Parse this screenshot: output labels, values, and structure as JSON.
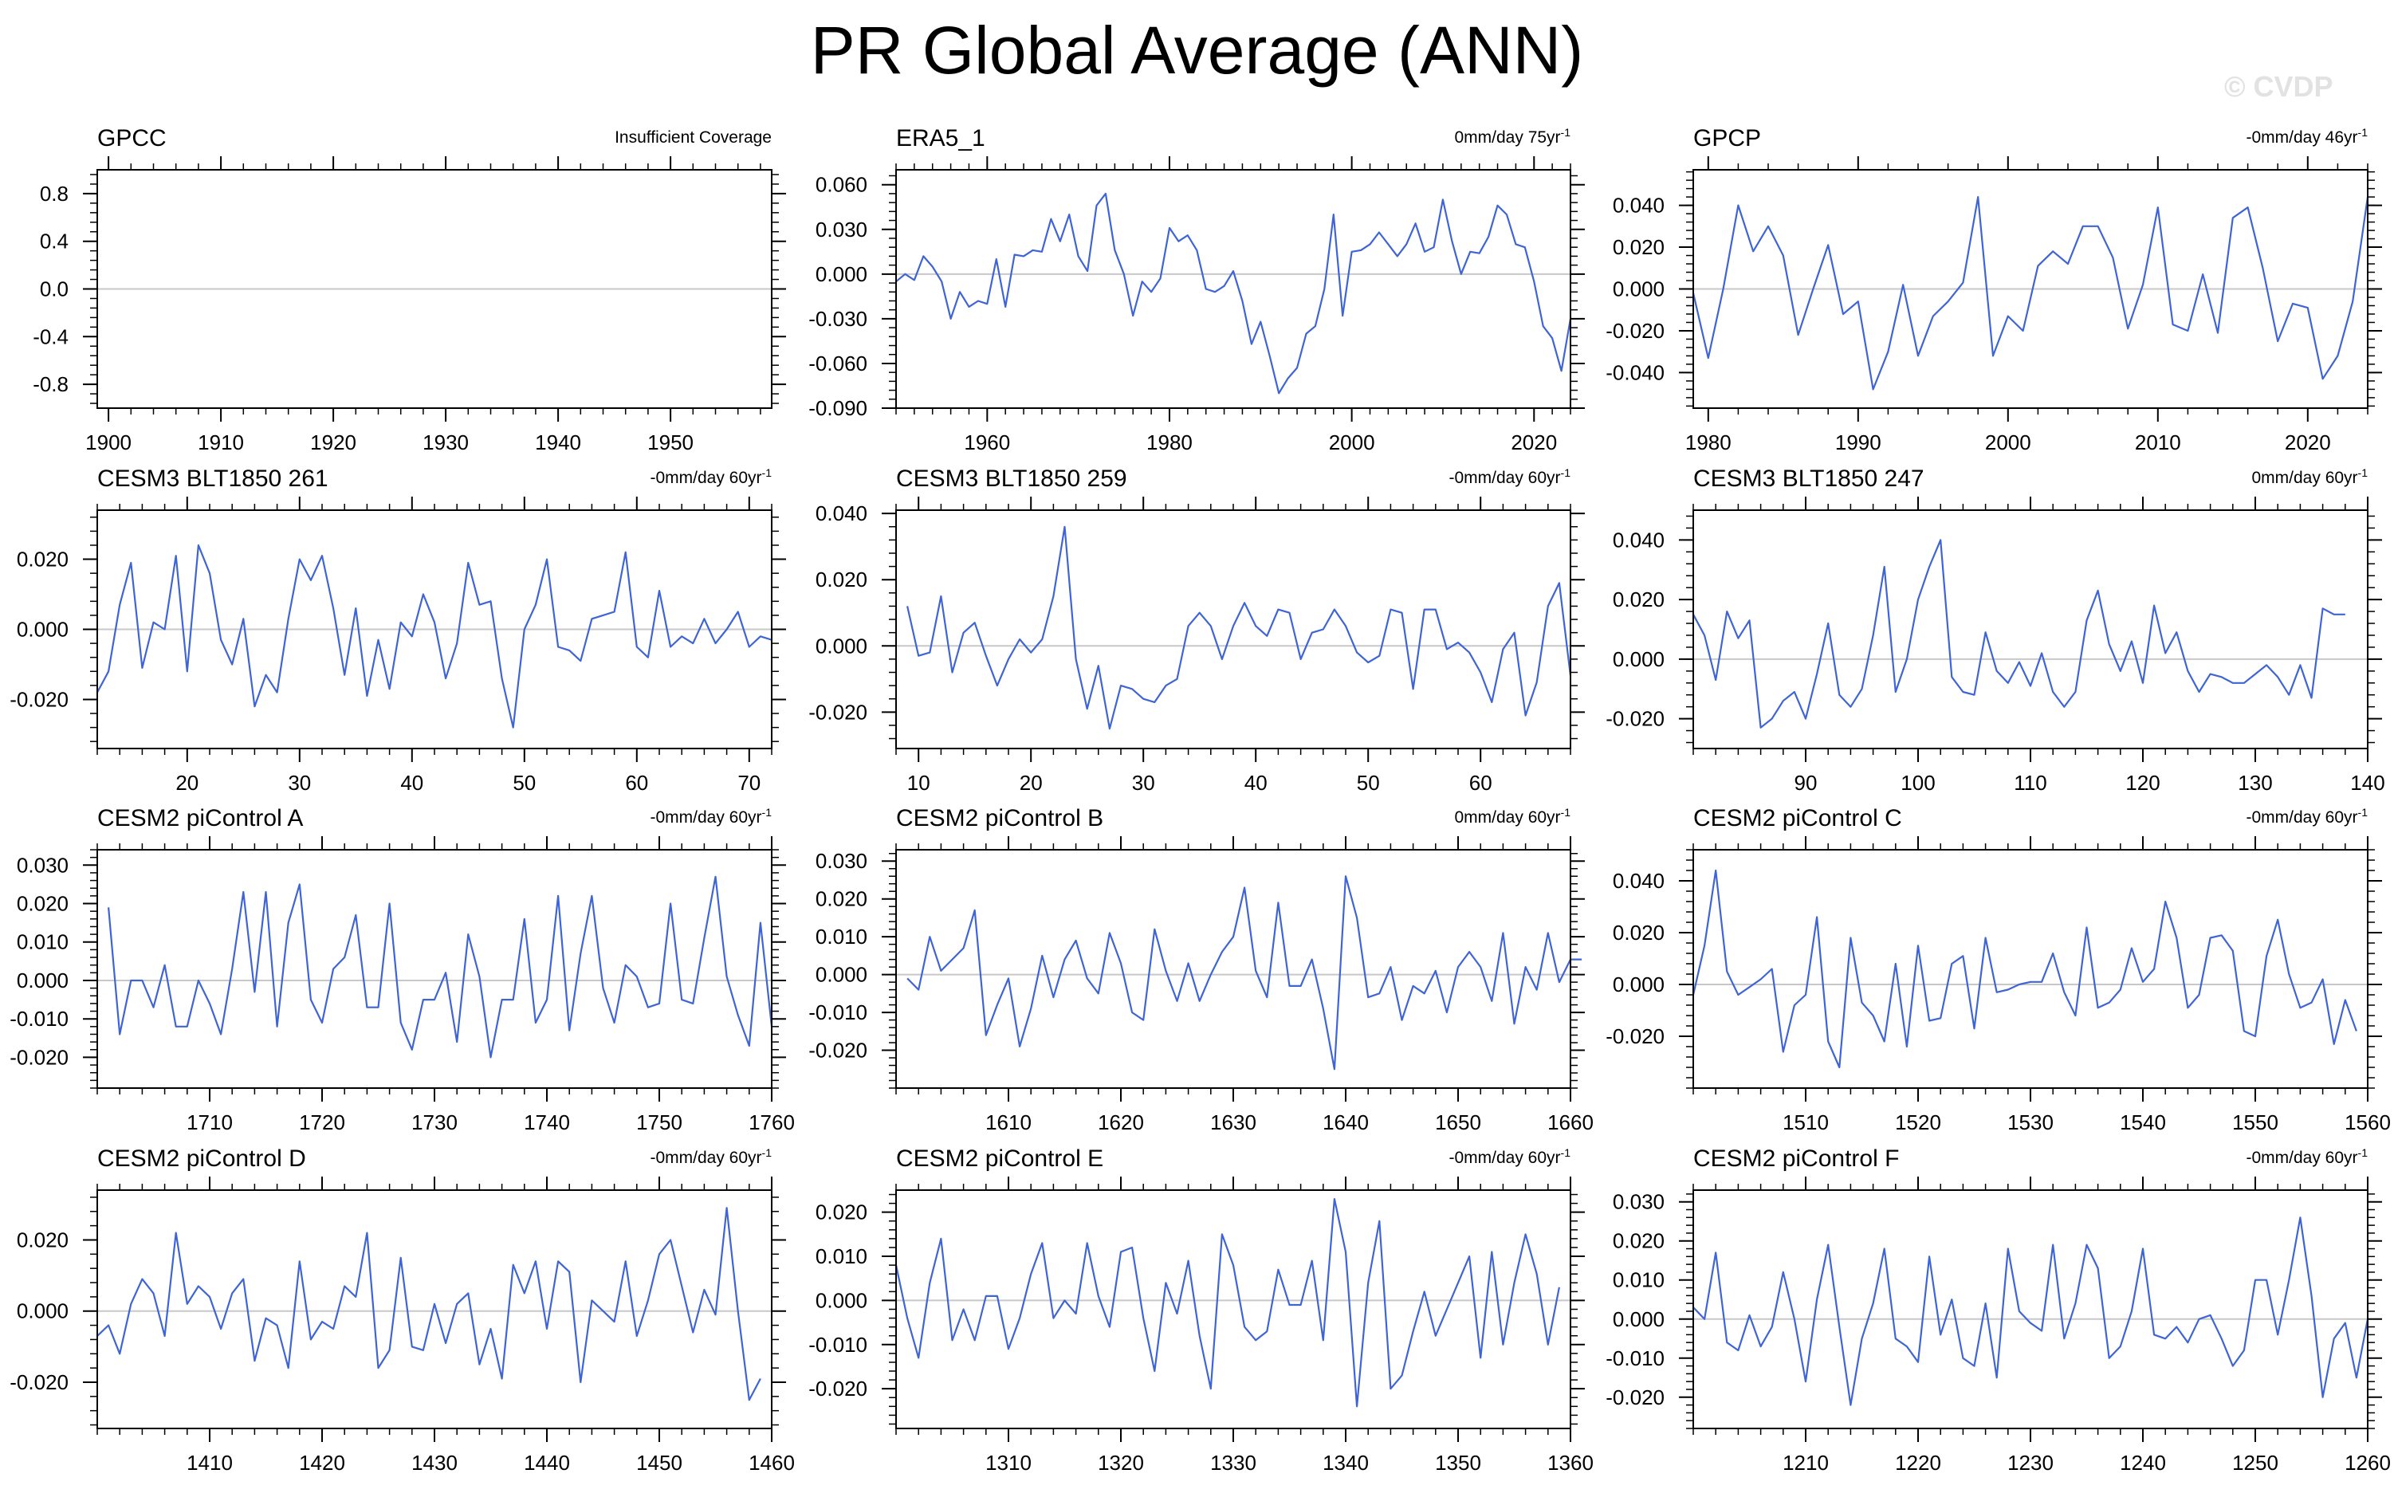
{
  "title": "PR Global Average (ANN)",
  "watermark": "© CVDP",
  "line_color": "#3f64d4",
  "zero_line_color": "#c8c8c8",
  "chart_data": [
    {
      "type": "line",
      "title": "GPCC",
      "subtitle": "Insufficient Coverage",
      "xlim": [
        1899,
        1959
      ],
      "ylim": [
        -1.0,
        1.0
      ],
      "xticks": [
        1900,
        1910,
        1920,
        1930,
        1940,
        1950
      ],
      "xticklabels": [
        "1900",
        "1910",
        "1920",
        "1930",
        "1940",
        "1950"
      ],
      "yticks": [
        0.8,
        0.4,
        0.0,
        -0.4,
        -0.8
      ],
      "yticklabels": [
        "0.8",
        "0.4",
        "0.0",
        "-0.4",
        "-0.8"
      ],
      "x": [],
      "y": []
    },
    {
      "type": "line",
      "title": "ERA5_1",
      "subtitle": "0mm/day 75yr",
      "subtitle_sup": "-1",
      "xlim": [
        1950,
        2024
      ],
      "ylim": [
        -0.09,
        0.07
      ],
      "xticks": [
        1960,
        1980,
        2000,
        2020
      ],
      "xticklabels": [
        "1960",
        "1980",
        "2000",
        "2020"
      ],
      "yticks": [
        0.06,
        0.03,
        0.0,
        -0.03,
        -0.06,
        -0.09
      ],
      "yticklabels": [
        "0.060",
        "0.030",
        "0.000",
        "-0.030",
        "-0.060",
        "-0.090"
      ],
      "x_start": 1950,
      "y": [
        -0.005,
        0.0,
        -0.004,
        0.012,
        0.005,
        -0.005,
        -0.03,
        -0.012,
        -0.022,
        -0.018,
        -0.02,
        0.01,
        -0.022,
        0.013,
        0.012,
        0.016,
        0.015,
        0.037,
        0.022,
        0.04,
        0.012,
        0.002,
        0.046,
        0.054,
        0.016,
        0.0,
        -0.028,
        -0.005,
        -0.012,
        -0.003,
        0.031,
        0.022,
        0.026,
        0.016,
        -0.01,
        -0.012,
        -0.008,
        0.002,
        -0.018,
        -0.047,
        -0.032,
        -0.055,
        -0.08,
        -0.07,
        -0.063,
        -0.04,
        -0.035,
        -0.01,
        0.04,
        -0.028,
        0.015,
        0.016,
        0.02,
        0.028,
        0.02,
        0.012,
        0.02,
        0.034,
        0.015,
        0.018,
        0.05,
        0.022,
        0.0,
        0.015,
        0.014,
        0.025,
        0.046,
        0.04,
        0.02,
        0.018,
        -0.005,
        -0.035,
        -0.043,
        -0.065,
        -0.03
      ]
    },
    {
      "type": "line",
      "title": "GPCP",
      "subtitle": "-0mm/day 46yr",
      "subtitle_sup": "-1",
      "xlim": [
        1979,
        2024
      ],
      "ylim": [
        -0.057,
        0.057
      ],
      "xticks": [
        1980,
        1990,
        2000,
        2010,
        2020
      ],
      "xticklabels": [
        "1980",
        "1990",
        "2000",
        "2010",
        "2020"
      ],
      "yticks": [
        0.04,
        0.02,
        0.0,
        -0.02,
        -0.04
      ],
      "yticklabels": [
        "0.040",
        "0.020",
        "0.000",
        "-0.020",
        "-0.040"
      ],
      "x_start": 1979,
      "y": [
        -0.002,
        -0.033,
        0.0,
        0.04,
        0.018,
        0.03,
        0.016,
        -0.022,
        0.0,
        0.021,
        -0.012,
        -0.006,
        -0.048,
        -0.03,
        0.002,
        -0.032,
        -0.013,
        -0.006,
        0.003,
        0.044,
        -0.032,
        -0.013,
        -0.02,
        0.011,
        0.018,
        0.012,
        0.03,
        0.03,
        0.015,
        -0.019,
        0.002,
        0.039,
        -0.017,
        -0.02,
        0.007,
        -0.021,
        0.034,
        0.039,
        0.01,
        -0.025,
        -0.007,
        -0.009,
        -0.043,
        -0.032,
        -0.006,
        0.044
      ]
    },
    {
      "type": "line",
      "title": "CESM3 BLT1850 261",
      "subtitle": "-0mm/day 60yr",
      "subtitle_sup": "-1",
      "xlim": [
        12,
        72
      ],
      "ylim": [
        -0.034,
        0.034
      ],
      "xticks": [
        20,
        30,
        40,
        50,
        60,
        70
      ],
      "xticklabels": [
        "20",
        "30",
        "40",
        "50",
        "60",
        "70"
      ],
      "yticks": [
        0.02,
        0.0,
        -0.02
      ],
      "yticklabels": [
        "0.020",
        "0.000",
        "-0.020"
      ],
      "x_start": 12,
      "y": [
        -0.018,
        -0.012,
        0.007,
        0.019,
        -0.011,
        0.002,
        0.0,
        0.021,
        -0.012,
        0.024,
        0.016,
        -0.003,
        -0.01,
        0.003,
        -0.022,
        -0.013,
        -0.018,
        0.003,
        0.02,
        0.014,
        0.021,
        0.006,
        -0.013,
        0.006,
        -0.019,
        -0.003,
        -0.017,
        0.002,
        -0.002,
        0.01,
        0.002,
        -0.014,
        -0.004,
        0.019,
        0.007,
        0.008,
        -0.014,
        -0.028,
        0.0,
        0.007,
        0.02,
        -0.005,
        -0.006,
        -0.009,
        0.003,
        0.004,
        0.005,
        0.022,
        -0.005,
        -0.008,
        0.011,
        -0.005,
        -0.002,
        -0.004,
        0.003,
        -0.004,
        0.0,
        0.005,
        -0.005,
        -0.002,
        -0.003
      ]
    },
    {
      "type": "line",
      "title": "CESM3 BLT1850 259",
      "subtitle": "-0mm/day 60yr",
      "subtitle_sup": "-1",
      "xlim": [
        8,
        68
      ],
      "ylim": [
        -0.031,
        0.041
      ],
      "xticks": [
        10,
        20,
        30,
        40,
        50,
        60
      ],
      "xticklabels": [
        "10",
        "20",
        "30",
        "40",
        "50",
        "60"
      ],
      "yticks": [
        0.04,
        0.02,
        0.0,
        -0.02
      ],
      "yticklabels": [
        "0.040",
        "0.020",
        "0.000",
        "-0.020"
      ],
      "x_start": 9,
      "y": [
        0.012,
        -0.003,
        -0.002,
        0.015,
        -0.008,
        0.004,
        0.007,
        -0.003,
        -0.012,
        -0.004,
        0.002,
        -0.002,
        0.002,
        0.015,
        0.036,
        -0.004,
        -0.019,
        -0.006,
        -0.025,
        -0.012,
        -0.013,
        -0.016,
        -0.017,
        -0.012,
        -0.01,
        0.006,
        0.01,
        0.006,
        -0.004,
        0.006,
        0.013,
        0.006,
        0.003,
        0.011,
        0.01,
        -0.004,
        0.004,
        0.005,
        0.011,
        0.006,
        -0.002,
        -0.005,
        -0.003,
        0.011,
        0.01,
        -0.013,
        0.011,
        0.011,
        -0.001,
        0.001,
        -0.002,
        -0.008,
        -0.017,
        -0.001,
        0.004,
        -0.021,
        -0.011,
        0.012,
        0.019,
        -0.009
      ]
    },
    {
      "type": "line",
      "title": "CESM3 BLT1850 247",
      "subtitle": "0mm/day 60yr",
      "subtitle_sup": "-1",
      "xlim": [
        80,
        140
      ],
      "ylim": [
        -0.03,
        0.05
      ],
      "xticks": [
        90,
        100,
        110,
        120,
        130,
        140
      ],
      "xticklabels": [
        "90",
        "100",
        "110",
        "120",
        "130",
        "140"
      ],
      "yticks": [
        0.04,
        0.02,
        0.0,
        -0.02
      ],
      "yticklabels": [
        "0.040",
        "0.020",
        "0.000",
        "-0.020"
      ],
      "x_start": 80,
      "y": [
        0.015,
        0.008,
        -0.007,
        0.016,
        0.007,
        0.013,
        -0.023,
        -0.02,
        -0.014,
        -0.011,
        -0.02,
        -0.005,
        0.012,
        -0.012,
        -0.016,
        -0.01,
        0.008,
        0.031,
        -0.011,
        0.0,
        0.02,
        0.031,
        0.04,
        -0.006,
        -0.011,
        -0.012,
        0.009,
        -0.004,
        -0.008,
        -0.001,
        -0.009,
        0.002,
        -0.011,
        -0.016,
        -0.011,
        0.013,
        0.023,
        0.005,
        -0.004,
        0.006,
        -0.008,
        0.018,
        0.002,
        0.009,
        -0.004,
        -0.011,
        -0.005,
        -0.006,
        -0.008,
        -0.008,
        -0.005,
        -0.002,
        -0.006,
        -0.012,
        -0.002,
        -0.013,
        0.017,
        0.015,
        0.015
      ]
    },
    {
      "type": "line",
      "title": "CESM2 piControl A",
      "subtitle": "-0mm/day 60yr",
      "subtitle_sup": "-1",
      "xlim": [
        1700,
        1760
      ],
      "ylim": [
        -0.028,
        0.034
      ],
      "xticks": [
        1710,
        1720,
        1730,
        1740,
        1750,
        1760
      ],
      "xticklabels": [
        "1710",
        "1720",
        "1730",
        "1740",
        "1750",
        "1760"
      ],
      "yticks": [
        0.03,
        0.02,
        0.01,
        0.0,
        -0.01,
        -0.02
      ],
      "yticklabels": [
        "0.030",
        "0.020",
        "0.010",
        "0.000",
        "-0.010",
        "-0.020"
      ],
      "x_start": 1701,
      "y": [
        0.019,
        -0.014,
        0.0,
        0.0,
        -0.007,
        0.004,
        -0.012,
        -0.012,
        0.0,
        -0.006,
        -0.014,
        0.003,
        0.023,
        -0.003,
        0.023,
        -0.012,
        0.015,
        0.025,
        -0.005,
        -0.011,
        0.003,
        0.006,
        0.017,
        -0.007,
        -0.007,
        0.02,
        -0.011,
        -0.018,
        -0.005,
        -0.005,
        0.002,
        -0.016,
        0.012,
        0.001,
        -0.02,
        -0.005,
        -0.005,
        0.016,
        -0.011,
        -0.005,
        0.022,
        -0.013,
        0.007,
        0.022,
        -0.002,
        -0.011,
        0.004,
        0.001,
        -0.007,
        -0.006,
        0.02,
        -0.005,
        -0.006,
        0.011,
        0.027,
        0.001,
        -0.009,
        -0.017,
        0.015,
        -0.012
      ]
    },
    {
      "type": "line",
      "title": "CESM2 piControl B",
      "subtitle": "0mm/day 60yr",
      "subtitle_sup": "-1",
      "xlim": [
        1600,
        1660
      ],
      "ylim": [
        -0.03,
        0.033
      ],
      "xticks": [
        1610,
        1620,
        1630,
        1640,
        1650,
        1660
      ],
      "xticklabels": [
        "1610",
        "1620",
        "1630",
        "1640",
        "1650",
        "1660"
      ],
      "yticks": [
        0.03,
        0.02,
        0.01,
        0.0,
        -0.01,
        -0.02
      ],
      "yticklabels": [
        "0.030",
        "0.020",
        "0.010",
        "0.000",
        "-0.010",
        "-0.020"
      ],
      "x_start": 1601,
      "y": [
        -0.001,
        -0.004,
        0.01,
        0.001,
        0.004,
        0.007,
        0.017,
        -0.016,
        -0.008,
        -0.001,
        -0.019,
        -0.009,
        0.005,
        -0.006,
        0.004,
        0.009,
        -0.001,
        -0.005,
        0.011,
        0.003,
        -0.01,
        -0.012,
        0.012,
        0.001,
        -0.007,
        0.003,
        -0.007,
        0.0,
        0.006,
        0.01,
        0.023,
        0.001,
        -0.006,
        0.019,
        -0.003,
        -0.003,
        0.004,
        -0.009,
        -0.025,
        0.026,
        0.015,
        -0.006,
        -0.005,
        0.002,
        -0.012,
        -0.003,
        -0.005,
        0.001,
        -0.01,
        0.002,
        0.006,
        0.002,
        -0.007,
        0.011,
        -0.013,
        0.002,
        -0.004,
        0.011,
        -0.002,
        0.004,
        0.004
      ]
    },
    {
      "type": "line",
      "title": "CESM2 piControl C",
      "subtitle": "-0mm/day 60yr",
      "subtitle_sup": "-1",
      "xlim": [
        1500,
        1560
      ],
      "ylim": [
        -0.04,
        0.052
      ],
      "xticks": [
        1510,
        1520,
        1530,
        1540,
        1550,
        1560
      ],
      "xticklabels": [
        "1510",
        "1520",
        "1530",
        "1540",
        "1550",
        "1560"
      ],
      "yticks": [
        0.04,
        0.02,
        0.0,
        -0.02
      ],
      "yticklabels": [
        "0.040",
        "0.020",
        "0.000",
        "-0.020"
      ],
      "x_start": 1500,
      "y": [
        -0.004,
        0.015,
        0.044,
        0.005,
        -0.004,
        -0.001,
        0.002,
        0.006,
        -0.026,
        -0.008,
        -0.004,
        0.026,
        -0.022,
        -0.032,
        0.018,
        -0.007,
        -0.012,
        -0.022,
        0.008,
        -0.024,
        0.015,
        -0.014,
        -0.013,
        0.008,
        0.011,
        -0.017,
        0.018,
        -0.003,
        -0.002,
        0.0,
        0.001,
        0.001,
        0.012,
        -0.003,
        -0.012,
        0.022,
        -0.009,
        -0.007,
        -0.002,
        0.014,
        0.001,
        0.006,
        0.032,
        0.018,
        -0.009,
        -0.004,
        0.018,
        0.019,
        0.013,
        -0.018,
        -0.02,
        0.011,
        0.025,
        0.004,
        -0.009,
        -0.007,
        0.002,
        -0.023,
        -0.006,
        -0.018
      ]
    },
    {
      "type": "line",
      "title": "CESM2 piControl D",
      "subtitle": "-0mm/day 60yr",
      "subtitle_sup": "-1",
      "xlim": [
        1400,
        1460
      ],
      "ylim": [
        -0.033,
        0.034
      ],
      "xticks": [
        1410,
        1420,
        1430,
        1440,
        1450,
        1460
      ],
      "xticklabels": [
        "1410",
        "1420",
        "1430",
        "1440",
        "1450",
        "1460"
      ],
      "yticks": [
        0.02,
        0.0,
        -0.02
      ],
      "yticklabels": [
        "0.020",
        "0.000",
        "-0.020"
      ],
      "x_start": 1400,
      "y": [
        -0.007,
        -0.004,
        -0.012,
        0.002,
        0.009,
        0.005,
        -0.007,
        0.022,
        0.002,
        0.007,
        0.004,
        -0.005,
        0.005,
        0.009,
        -0.014,
        -0.002,
        -0.004,
        -0.016,
        0.014,
        -0.008,
        -0.003,
        -0.005,
        0.007,
        0.004,
        0.022,
        -0.016,
        -0.011,
        0.015,
        -0.01,
        -0.011,
        0.002,
        -0.009,
        0.002,
        0.005,
        -0.015,
        -0.005,
        -0.019,
        0.013,
        0.005,
        0.014,
        -0.005,
        0.014,
        0.011,
        -0.02,
        0.003,
        0.0,
        -0.003,
        0.014,
        -0.007,
        0.003,
        0.016,
        0.02,
        0.007,
        -0.006,
        0.006,
        -0.001,
        0.029,
        0.0,
        -0.025,
        -0.019
      ]
    },
    {
      "type": "line",
      "title": "CESM2 piControl E",
      "subtitle": "-0mm/day 60yr",
      "subtitle_sup": "-1",
      "xlim": [
        1300,
        1360
      ],
      "ylim": [
        -0.029,
        0.025
      ],
      "xticks": [
        1310,
        1320,
        1330,
        1340,
        1350,
        1360
      ],
      "xticklabels": [
        "1310",
        "1320",
        "1330",
        "1340",
        "1350",
        "1360"
      ],
      "yticks": [
        0.02,
        0.01,
        0.0,
        -0.01,
        -0.02
      ],
      "yticklabels": [
        "0.020",
        "0.010",
        "0.000",
        "-0.010",
        "-0.020"
      ],
      "x_start": 1300,
      "y": [
        0.008,
        -0.004,
        -0.013,
        0.004,
        0.014,
        -0.009,
        -0.002,
        -0.009,
        0.001,
        0.001,
        -0.011,
        -0.004,
        0.006,
        0.013,
        -0.004,
        0.0,
        -0.003,
        0.013,
        0.001,
        -0.006,
        0.011,
        0.012,
        -0.004,
        -0.016,
        0.004,
        -0.003,
        0.009,
        -0.008,
        -0.02,
        0.015,
        0.008,
        -0.006,
        -0.009,
        -0.007,
        0.007,
        -0.001,
        -0.001,
        0.009,
        -0.009,
        0.023,
        0.011,
        -0.024,
        0.004,
        0.018,
        -0.02,
        -0.017,
        -0.007,
        0.002,
        -0.008,
        -0.002,
        0.004,
        0.01,
        -0.013,
        0.011,
        -0.01,
        0.004,
        0.015,
        0.006,
        -0.01,
        0.003
      ]
    },
    {
      "type": "line",
      "title": "CESM2 piControl F",
      "subtitle": "-0mm/day 60yr",
      "subtitle_sup": "-1",
      "xlim": [
        1200,
        1260
      ],
      "ylim": [
        -0.028,
        0.033
      ],
      "xticks": [
        1210,
        1220,
        1230,
        1240,
        1250,
        1260
      ],
      "xticklabels": [
        "1210",
        "1220",
        "1230",
        "1240",
        "1250",
        "1260"
      ],
      "yticks": [
        0.03,
        0.02,
        0.01,
        0.0,
        -0.01,
        -0.02
      ],
      "yticklabels": [
        "0.030",
        "0.020",
        "0.010",
        "0.000",
        "-0.010",
        "-0.020"
      ],
      "x_start": 1200,
      "y": [
        0.003,
        0.0,
        0.017,
        -0.006,
        -0.008,
        0.001,
        -0.007,
        -0.002,
        0.012,
        0.0,
        -0.016,
        0.005,
        0.019,
        -0.002,
        -0.022,
        -0.005,
        0.004,
        0.018,
        -0.005,
        -0.007,
        -0.011,
        0.016,
        -0.004,
        0.005,
        -0.01,
        -0.012,
        0.004,
        -0.015,
        0.018,
        0.002,
        -0.001,
        -0.003,
        0.019,
        -0.005,
        0.004,
        0.019,
        0.013,
        -0.01,
        -0.007,
        0.002,
        0.018,
        -0.004,
        -0.005,
        -0.002,
        -0.006,
        0.0,
        0.001,
        -0.005,
        -0.012,
        -0.008,
        0.01,
        0.01,
        -0.004,
        0.01,
        0.026,
        0.006,
        -0.02,
        -0.005,
        -0.001,
        -0.015,
        0.0
      ]
    }
  ]
}
